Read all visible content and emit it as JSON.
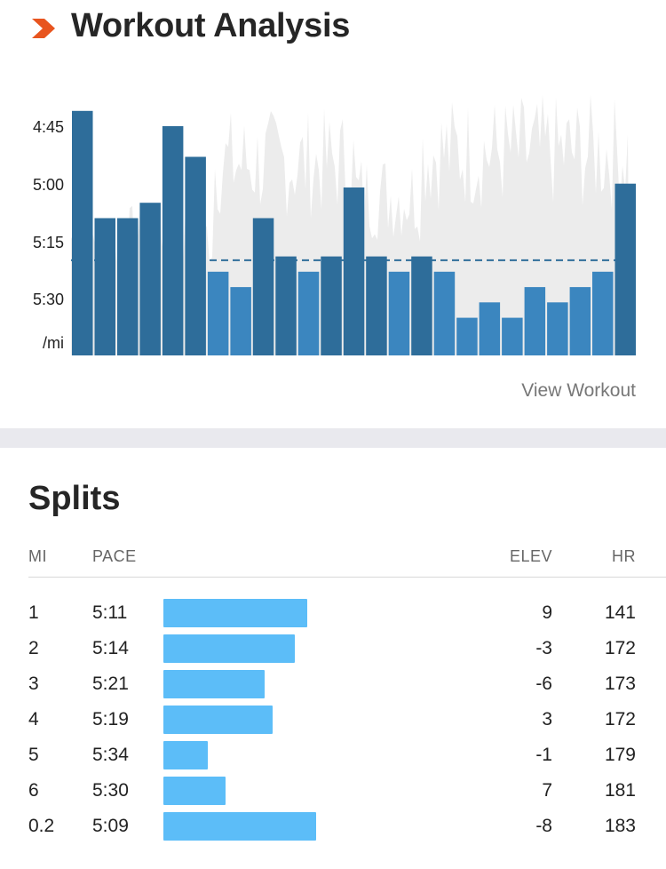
{
  "header": {
    "title": "Workout Analysis",
    "brand_color": "#e8551f"
  },
  "chart_data": {
    "type": "bar",
    "y_unit": "/mi",
    "y_ticks": [
      "4:45",
      "5:00",
      "5:15",
      "5:30"
    ],
    "y_inverted": true,
    "ylim_seconds": [
      280,
      345
    ],
    "average_pace_seconds": 320,
    "bar_color_dark": "#2e6d9a",
    "bar_color_light": "#3b86bf",
    "background_series_color": "#ececec",
    "values_seconds": [
      281,
      309,
      309,
      305,
      285,
      293,
      323,
      327,
      309,
      319,
      323,
      319,
      301,
      319,
      323,
      319,
      323,
      335,
      331,
      335,
      327,
      331,
      327,
      323,
      300
    ],
    "bar_shades": [
      "dark",
      "dark",
      "dark",
      "dark",
      "dark",
      "dark",
      "light",
      "light",
      "dark",
      "dark",
      "light",
      "dark",
      "dark",
      "dark",
      "light",
      "dark",
      "light",
      "light",
      "light",
      "light",
      "light",
      "light",
      "light",
      "light",
      "dark"
    ]
  },
  "view_workout_label": "View Workout",
  "splits": {
    "title": "Splits",
    "columns": {
      "mi": "MI",
      "pace": "PACE",
      "elev": "ELEV",
      "hr": "HR"
    },
    "bar_color": "#5cbdf8",
    "rows": [
      {
        "mi": "1",
        "pace": "5:11",
        "pace_seconds": 311,
        "elev": "9",
        "hr": "141"
      },
      {
        "mi": "2",
        "pace": "5:14",
        "pace_seconds": 314,
        "elev": "-3",
        "hr": "172"
      },
      {
        "mi": "3",
        "pace": "5:21",
        "pace_seconds": 321,
        "elev": "-6",
        "hr": "173"
      },
      {
        "mi": "4",
        "pace": "5:19",
        "pace_seconds": 319,
        "elev": "3",
        "hr": "172"
      },
      {
        "mi": "5",
        "pace": "5:34",
        "pace_seconds": 334,
        "elev": "-1",
        "hr": "179"
      },
      {
        "mi": "6",
        "pace": "5:30",
        "pace_seconds": 330,
        "elev": "7",
        "hr": "181"
      },
      {
        "mi": "0.2",
        "pace": "5:09",
        "pace_seconds": 309,
        "elev": "-8",
        "hr": "183"
      }
    ]
  }
}
